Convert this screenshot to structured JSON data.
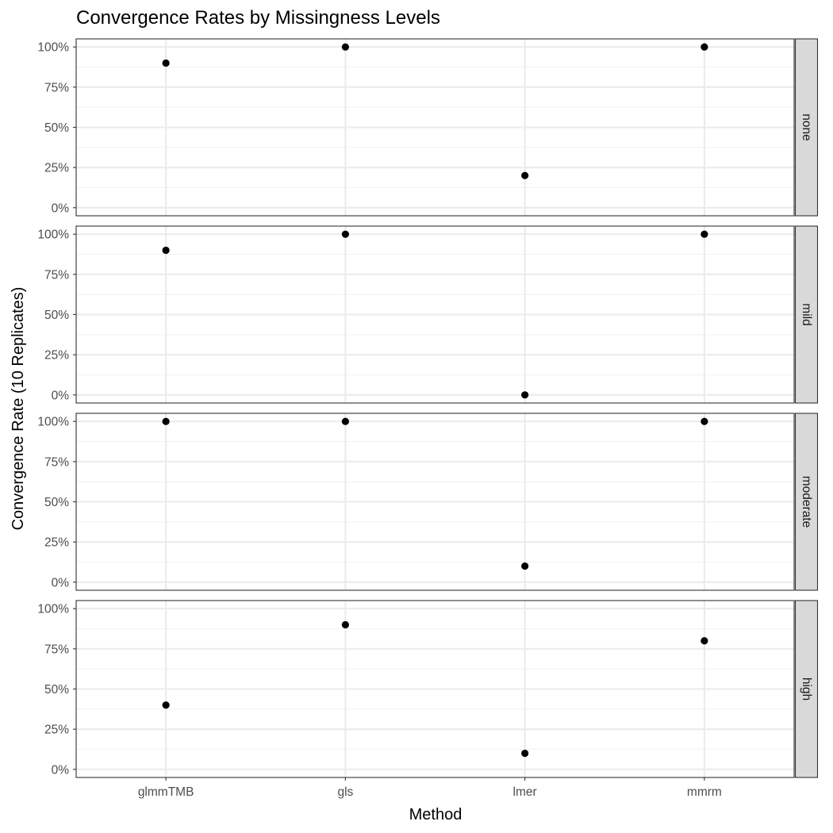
{
  "chart_data": {
    "type": "scatter",
    "title": "Convergence Rates by Missingness Levels",
    "xlabel": "Method",
    "ylabel": "Convergence Rate (10 Replicates)",
    "categories": [
      "glmmTMB",
      "gls",
      "lmer",
      "mmrm"
    ],
    "y_ticks": [
      "0%",
      "25%",
      "50%",
      "75%",
      "100%"
    ],
    "ylim": [
      0,
      1
    ],
    "facet_layout": "rows",
    "strip_position": "right",
    "grid": true,
    "facets": [
      {
        "label": "none",
        "values": [
          0.9,
          1.0,
          0.2,
          1.0
        ]
      },
      {
        "label": "mild",
        "values": [
          0.9,
          1.0,
          0.0,
          1.0
        ]
      },
      {
        "label": "moderate",
        "values": [
          1.0,
          1.0,
          0.1,
          1.0
        ]
      },
      {
        "label": "high",
        "values": [
          0.4,
          0.9,
          0.1,
          0.8
        ]
      }
    ],
    "point_color": "#000000"
  }
}
